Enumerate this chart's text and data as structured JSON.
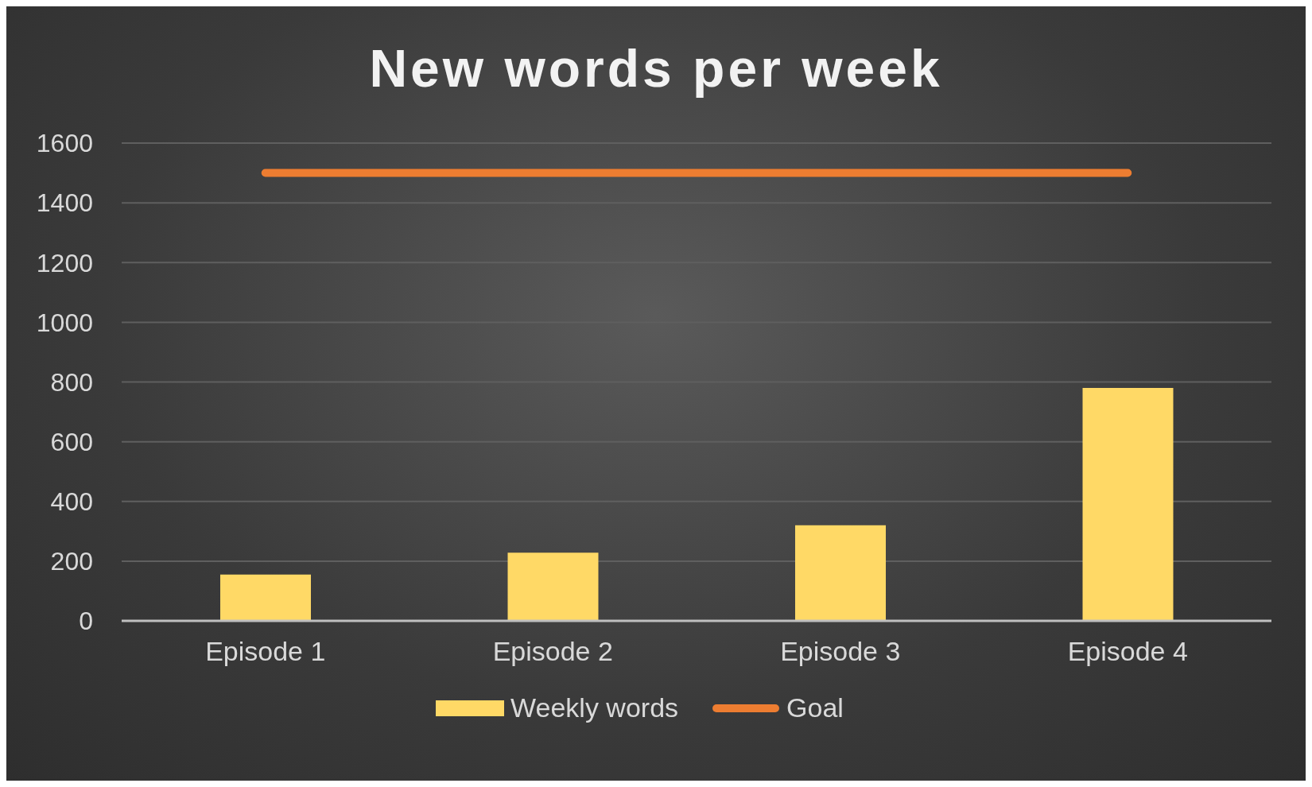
{
  "chart_data": {
    "type": "bar",
    "title": "New words per week",
    "categories": [
      "Episode 1",
      "Episode 2",
      "Episode 3",
      "Episode 4"
    ],
    "series": [
      {
        "name": "Weekly words",
        "color": "#ffd966",
        "values": [
          155,
          228,
          320,
          780
        ]
      },
      {
        "name": "Goal",
        "type": "line",
        "color": "#ed7d31",
        "values": [
          1500,
          1500,
          1500,
          1500
        ]
      }
    ],
    "ylim": [
      0,
      1600
    ],
    "yticks": [
      0,
      200,
      400,
      600,
      800,
      1000,
      1200,
      1400,
      1600
    ],
    "grid": "y",
    "legend": "bottom"
  }
}
